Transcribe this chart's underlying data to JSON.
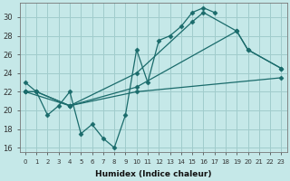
{
  "xlabel": "Humidex (Indice chaleur)",
  "bg_color": "#c5e8e8",
  "grid_color": "#a0cccc",
  "line_color": "#1a6b6b",
  "xlim": [
    -0.5,
    23.5
  ],
  "ylim": [
    15.5,
    31.5
  ],
  "xticks": [
    0,
    1,
    2,
    3,
    4,
    5,
    6,
    7,
    8,
    9,
    10,
    11,
    12,
    13,
    14,
    15,
    16,
    17,
    18,
    19,
    20,
    21,
    22,
    23
  ],
  "yticks": [
    16,
    18,
    20,
    22,
    24,
    26,
    28,
    30
  ],
  "series": [
    {
      "x": [
        0,
        1,
        2,
        3,
        4,
        5,
        6,
        7,
        8,
        9,
        10,
        11,
        12,
        13,
        14,
        15,
        16,
        17
      ],
      "y": [
        23,
        22,
        19.5,
        20.5,
        22,
        17.5,
        18.5,
        17,
        16,
        19.5,
        26.5,
        23,
        27.5,
        28,
        29,
        30.5,
        31,
        30.5
      ]
    },
    {
      "x": [
        0,
        1,
        4,
        10,
        15,
        16,
        19,
        20,
        23
      ],
      "y": [
        22,
        22,
        20.5,
        24,
        29.5,
        30.5,
        28.5,
        26.5,
        24.5
      ]
    },
    {
      "x": [
        0,
        4,
        10,
        19,
        20,
        23
      ],
      "y": [
        22,
        20.5,
        22.5,
        28.5,
        26.5,
        24.5
      ]
    },
    {
      "x": [
        0,
        1,
        4,
        10,
        23
      ],
      "y": [
        22,
        22,
        20.5,
        22,
        23.5
      ]
    }
  ]
}
